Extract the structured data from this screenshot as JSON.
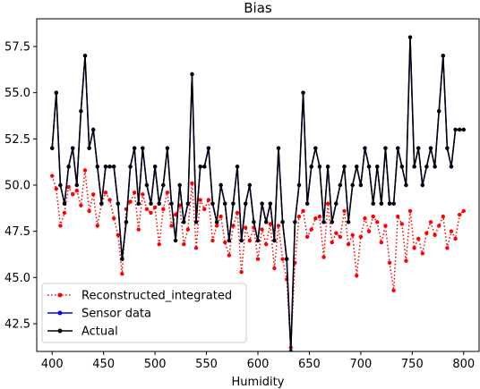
{
  "chart_data": {
    "type": "line",
    "title": "Bias",
    "xlabel": "Humidity",
    "ylabel": "",
    "xlim": [
      385,
      815
    ],
    "ylim": [
      41.0,
      59.0
    ],
    "xticks": [
      400,
      450,
      500,
      550,
      600,
      650,
      700,
      750,
      800
    ],
    "yticks": [
      42.5,
      45.0,
      47.5,
      50.0,
      52.5,
      55.0,
      57.5
    ],
    "ytick_labels": [
      "42.5",
      "45.0",
      "47.5",
      "50.0",
      "52.5",
      "55.0",
      "57.5"
    ],
    "legend": "lower-left",
    "grid": false,
    "series": [
      {
        "name": "Reconstructed_integrated",
        "color": "#ff0000",
        "style": "dotted",
        "x": [
          400,
          404,
          408,
          412,
          416,
          420,
          424,
          428,
          432,
          436,
          440,
          444,
          448,
          452,
          456,
          460,
          464,
          468,
          472,
          476,
          480,
          484,
          488,
          492,
          496,
          500,
          504,
          508,
          512,
          516,
          520,
          524,
          528,
          532,
          536,
          540,
          544,
          548,
          552,
          556,
          560,
          564,
          568,
          572,
          576,
          580,
          584,
          588,
          592,
          596,
          600,
          604,
          608,
          612,
          616,
          620,
          624,
          628,
          632,
          636,
          640,
          644,
          648,
          652,
          656,
          660,
          664,
          668,
          672,
          676,
          680,
          684,
          688,
          692,
          696,
          700,
          704,
          708,
          712,
          716,
          720,
          724,
          728,
          732,
          736,
          740,
          744,
          748,
          752,
          756,
          760,
          764,
          768,
          772,
          776,
          780,
          784,
          788,
          792,
          796,
          800
        ],
        "values": [
          50.5,
          49.8,
          47.8,
          48.5,
          49.9,
          49.5,
          49.7,
          48.9,
          50.8,
          48.6,
          49.5,
          47.8,
          49.0,
          49.6,
          49.2,
          48.2,
          47.3,
          45.2,
          48.7,
          49.1,
          49.6,
          47.6,
          49.5,
          48.7,
          48.5,
          48.8,
          46.8,
          48.7,
          49.6,
          47.8,
          48.4,
          48.9,
          46.8,
          47.6,
          50.1,
          46.6,
          49.2,
          48.7,
          49.2,
          47.0,
          47.8,
          48.3,
          46.9,
          46.2,
          47.8,
          48.5,
          45.3,
          47.7,
          47.0,
          47.7,
          46.0,
          47.6,
          46.8,
          47.9,
          45.5,
          47.8,
          46.0,
          44.9,
          41.2,
          45.8,
          48.3,
          48.6,
          47.2,
          47.6,
          48.2,
          48.3,
          46.1,
          49.0,
          46.9,
          47.4,
          47.2,
          48.6,
          46.8,
          47.3,
          45.1,
          47.2,
          48.2,
          47.5,
          48.3,
          48.0,
          46.9,
          47.8,
          45.8,
          44.3,
          48.3,
          47.9,
          45.9,
          48.6,
          46.6,
          47.1,
          46.3,
          47.4,
          48.0,
          47.3,
          47.8,
          48.3,
          46.6,
          47.5,
          47.1,
          48.4,
          48.6
        ]
      },
      {
        "name": "Sensor data",
        "color": "#0000ff",
        "style": "solid",
        "x": [
          400,
          404,
          408,
          412,
          416,
          420,
          424,
          428,
          432,
          436,
          440,
          444,
          448,
          452,
          456,
          460,
          464,
          468,
          472,
          476,
          480,
          484,
          488,
          492,
          496,
          500,
          504,
          508,
          512,
          516,
          520,
          524,
          528,
          532,
          536,
          540,
          544,
          548,
          552,
          556,
          560,
          564,
          568,
          572,
          576,
          580,
          584,
          588,
          592,
          596,
          600,
          604,
          608,
          612,
          616,
          620,
          624,
          628,
          632,
          636,
          640,
          644,
          648,
          652,
          656,
          660,
          664,
          668,
          672,
          676,
          680,
          684,
          688,
          692,
          696,
          700,
          704,
          708,
          712,
          716,
          720,
          724,
          728,
          732,
          736,
          740,
          744,
          748,
          752,
          756,
          760,
          764,
          768,
          772,
          776,
          780,
          784,
          788,
          792,
          796,
          800
        ],
        "values": [
          52.0,
          55.0,
          50.0,
          49.0,
          51.0,
          52.0,
          50.0,
          54.0,
          57.0,
          52.0,
          53.0,
          51.0,
          49.0,
          51.0,
          51.0,
          51.0,
          49.0,
          46.0,
          48.0,
          51.0,
          52.0,
          49.0,
          52.0,
          50.0,
          49.0,
          51.0,
          49.0,
          50.0,
          52.0,
          49.0,
          47.0,
          50.0,
          48.0,
          49.0,
          56.0,
          48.0,
          51.0,
          51.0,
          52.0,
          49.0,
          48.0,
          50.0,
          49.0,
          47.0,
          49.0,
          51.0,
          47.0,
          49.0,
          50.0,
          48.0,
          47.0,
          49.0,
          48.0,
          49.0,
          47.0,
          52.0,
          48.0,
          46.0,
          41.0,
          48.0,
          50.0,
          55.0,
          49.0,
          51.0,
          52.0,
          51.0,
          48.0,
          51.0,
          48.0,
          49.0,
          50.0,
          51.0,
          48.0,
          50.0,
          51.0,
          50.0,
          52.0,
          51.0,
          49.0,
          51.0,
          49.0,
          52.0,
          49.0,
          49.0,
          52.0,
          51.0,
          50.0,
          58.0,
          51.0,
          52.0,
          50.0,
          51.0,
          52.0,
          51.0,
          54.0,
          57.0,
          52.0,
          51.0,
          53.0,
          53.0,
          53.0
        ]
      },
      {
        "name": "Actual",
        "color": "#000000",
        "style": "solid",
        "x": [
          400,
          404,
          408,
          412,
          416,
          420,
          424,
          428,
          432,
          436,
          440,
          444,
          448,
          452,
          456,
          460,
          464,
          468,
          472,
          476,
          480,
          484,
          488,
          492,
          496,
          500,
          504,
          508,
          512,
          516,
          520,
          524,
          528,
          532,
          536,
          540,
          544,
          548,
          552,
          556,
          560,
          564,
          568,
          572,
          576,
          580,
          584,
          588,
          592,
          596,
          600,
          604,
          608,
          612,
          616,
          620,
          624,
          628,
          632,
          636,
          640,
          644,
          648,
          652,
          656,
          660,
          664,
          668,
          672,
          676,
          680,
          684,
          688,
          692,
          696,
          700,
          704,
          708,
          712,
          716,
          720,
          724,
          728,
          732,
          736,
          740,
          744,
          748,
          752,
          756,
          760,
          764,
          768,
          772,
          776,
          780,
          784,
          788,
          792,
          796,
          800
        ],
        "values": [
          52.0,
          55.0,
          50.0,
          49.0,
          51.0,
          52.0,
          50.0,
          54.0,
          57.0,
          52.0,
          53.0,
          51.0,
          49.0,
          51.0,
          51.0,
          51.0,
          49.0,
          46.0,
          48.0,
          51.0,
          52.0,
          49.0,
          52.0,
          50.0,
          49.0,
          51.0,
          49.0,
          50.0,
          52.0,
          49.0,
          47.0,
          50.0,
          48.0,
          49.0,
          56.0,
          48.0,
          51.0,
          51.0,
          52.0,
          49.0,
          48.0,
          50.0,
          49.0,
          47.0,
          49.0,
          51.0,
          47.0,
          49.0,
          50.0,
          48.0,
          47.0,
          49.0,
          48.0,
          49.0,
          47.0,
          52.0,
          48.0,
          46.0,
          41.0,
          48.0,
          50.0,
          55.0,
          49.0,
          51.0,
          52.0,
          51.0,
          48.0,
          51.0,
          48.0,
          49.0,
          50.0,
          51.0,
          48.0,
          50.0,
          51.0,
          50.0,
          52.0,
          51.0,
          49.0,
          51.0,
          49.0,
          52.0,
          49.0,
          49.0,
          52.0,
          51.0,
          50.0,
          58.0,
          51.0,
          52.0,
          50.0,
          51.0,
          52.0,
          51.0,
          54.0,
          57.0,
          52.0,
          51.0,
          53.0,
          53.0,
          53.0
        ]
      }
    ]
  }
}
